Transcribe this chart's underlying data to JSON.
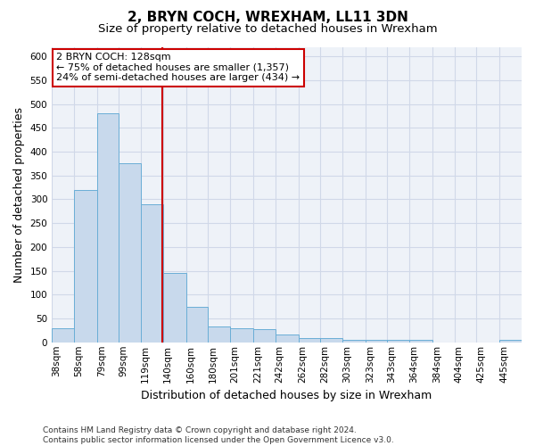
{
  "title": "2, BRYN COCH, WREXHAM, LL11 3DN",
  "subtitle": "Size of property relative to detached houses in Wrexham",
  "xlabel": "Distribution of detached houses by size in Wrexham",
  "ylabel": "Number of detached properties",
  "categories": [
    "38sqm",
    "58sqm",
    "79sqm",
    "99sqm",
    "119sqm",
    "140sqm",
    "160sqm",
    "180sqm",
    "201sqm",
    "221sqm",
    "242sqm",
    "262sqm",
    "282sqm",
    "303sqm",
    "323sqm",
    "343sqm",
    "364sqm",
    "384sqm",
    "404sqm",
    "425sqm",
    "445sqm"
  ],
  "values": [
    30,
    320,
    480,
    375,
    290,
    145,
    75,
    33,
    30,
    28,
    17,
    8,
    8,
    5,
    5,
    5,
    5,
    0,
    0,
    0,
    5
  ],
  "bar_color": "#c8d9ec",
  "bar_edge_color": "#6aaed6",
  "grid_color": "#d0d8e8",
  "bg_color": "#eef2f8",
  "annotation_line1": "2 BRYN COCH: 128sqm",
  "annotation_line2": "← 75% of detached houses are smaller (1,357)",
  "annotation_line3": "24% of semi-detached houses are larger (434) →",
  "annotation_box_color": "#ffffff",
  "annotation_box_edge_color": "#cc0000",
  "vline_color": "#cc0000",
  "vline_x": 128,
  "bin_edges": [
    28,
    48,
    69,
    89,
    109,
    129,
    150,
    170,
    190,
    211,
    231,
    252,
    272,
    292,
    313,
    333,
    353,
    374,
    394,
    414,
    435,
    455
  ],
  "ylim": [
    0,
    620
  ],
  "yticks": [
    0,
    50,
    100,
    150,
    200,
    250,
    300,
    350,
    400,
    450,
    500,
    550,
    600
  ],
  "title_fontsize": 11,
  "subtitle_fontsize": 9.5,
  "xlabel_fontsize": 9,
  "ylabel_fontsize": 9,
  "tick_fontsize": 7.5,
  "annot_fontsize": 8,
  "footer_fontsize": 6.5,
  "footer": "Contains HM Land Registry data © Crown copyright and database right 2024.\nContains public sector information licensed under the Open Government Licence v3.0."
}
